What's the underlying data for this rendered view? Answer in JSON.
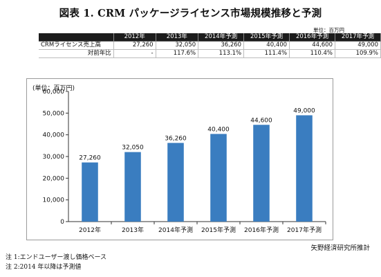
{
  "title": "図表 1. CRM パッケージライセンス市場規模推移と予測",
  "table": {
    "unit": "単位：百万円",
    "headers": [
      "",
      "2012年",
      "2013年",
      "2014年予測",
      "2015年予測",
      "2016年予測",
      "2017年予測"
    ],
    "rows": [
      {
        "label": "CRMライセンス売上高",
        "cells": [
          "27,260",
          "32,050",
          "36,260",
          "40,400",
          "44,600",
          "49,000"
        ]
      },
      {
        "label": "対前年比",
        "cells": [
          "-",
          "117.6%",
          "113.1%",
          "111.4%",
          "110.4%",
          "109.9%"
        ]
      }
    ]
  },
  "chart_data": {
    "type": "bar",
    "unit_label": "(単位：百万円)",
    "categories": [
      "2012年",
      "2013年",
      "2014年予測",
      "2015年予測",
      "2016年予測",
      "2017年予測"
    ],
    "values": [
      27260,
      32050,
      36260,
      40400,
      44600,
      49000
    ],
    "data_labels": [
      "27,260",
      "32,050",
      "36,260",
      "40,400",
      "44,600",
      "49,000"
    ],
    "ylim": [
      0,
      60000
    ],
    "yticks": [
      0,
      10000,
      20000,
      30000,
      40000,
      50000,
      60000
    ],
    "ytick_labels": [
      "0",
      "10,000",
      "20,000",
      "30,000",
      "40,000",
      "50,000",
      "60,000"
    ],
    "bar_color": "#3a7dc0",
    "grid": false,
    "legend": "none"
  },
  "source": "矢野経済研究所推計",
  "notes": [
    "注 1:エンドユーザー渡し価格ベース",
    "注 2:2014 年以降は予測値"
  ]
}
